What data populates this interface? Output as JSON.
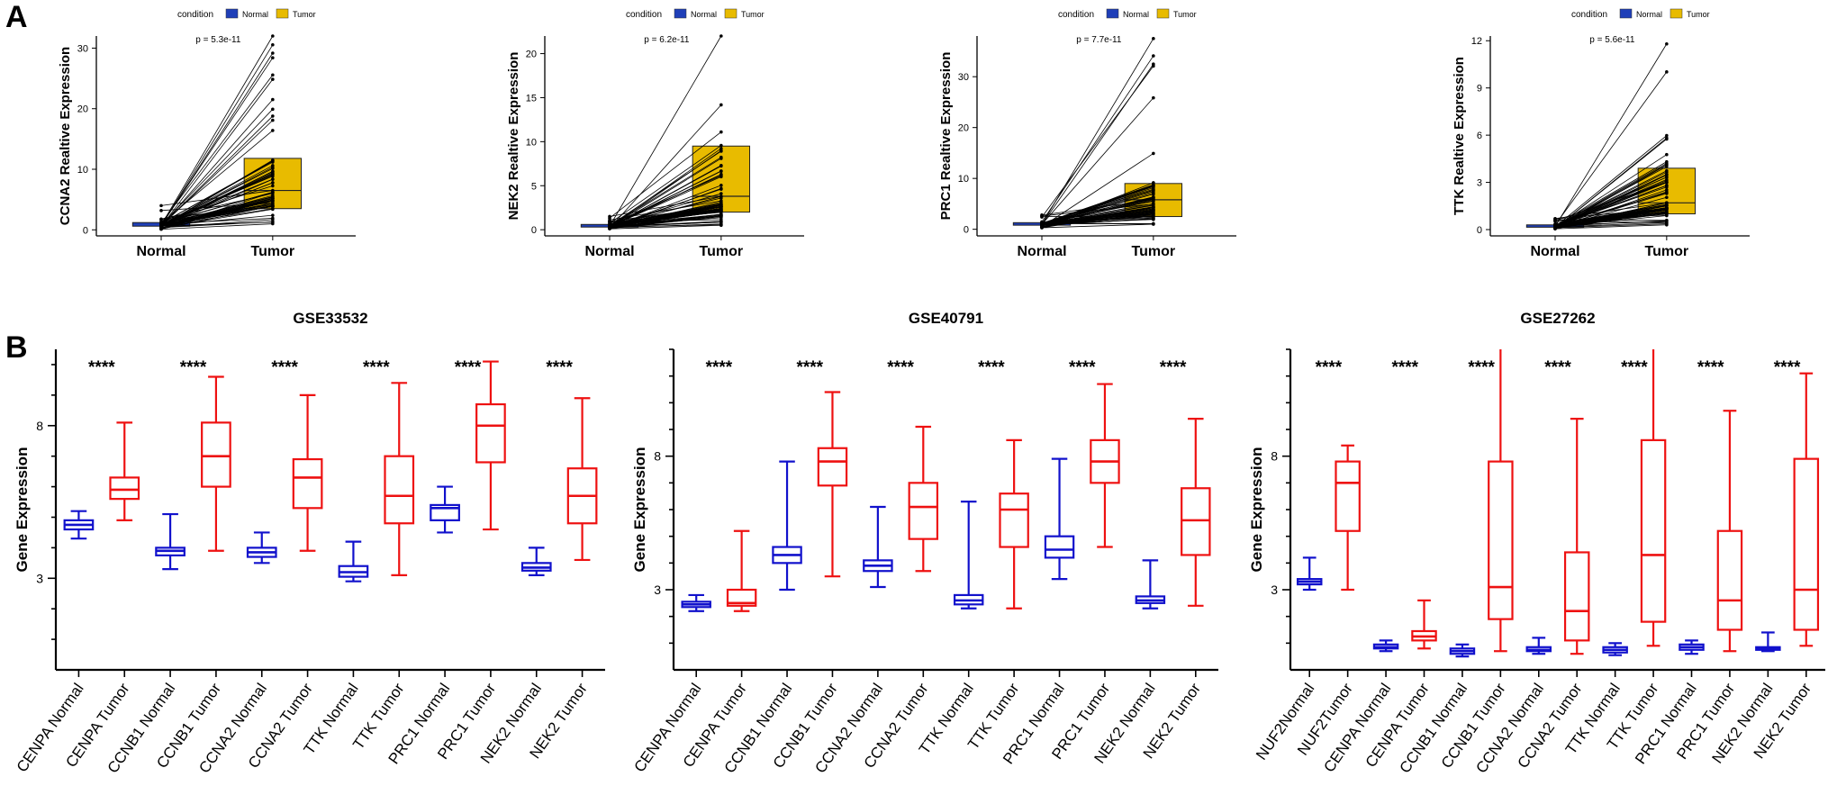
{
  "panels": {
    "a": "A",
    "b": "B"
  },
  "colors": {
    "normal": "#1f3fb8",
    "tumor": "#e8bb00",
    "blue_box": "#1111cc",
    "red_box": "#ee1111",
    "line": "#000000"
  },
  "chart_data": [
    {
      "type": "paired-boxplot",
      "panel": "A",
      "legend": {
        "title": "condition",
        "entries": [
          "Normal",
          "Tumor"
        ],
        "placement": "top"
      },
      "p_label": "p = 5.3e-11",
      "ylabel": "CCNA2 Realtive Expression",
      "categories": [
        "Normal",
        "Tumor"
      ],
      "yticks": [
        0,
        10,
        20,
        30
      ],
      "ylim": [
        -1,
        32
      ],
      "normal": {
        "min": 0.1,
        "q1": 0.6,
        "median": 0.8,
        "q3": 1.2,
        "max": 4.0
      },
      "tumor": {
        "min": 1.0,
        "q1": 3.5,
        "median": 6.5,
        "q3": 11.8,
        "max": 32.0
      }
    },
    {
      "type": "paired-boxplot",
      "panel": "A",
      "legend": {
        "title": "condition",
        "entries": [
          "Normal",
          "Tumor"
        ],
        "placement": "top"
      },
      "p_label": "p = 6.2e-11",
      "ylabel": "NEK2 Realtive Expression",
      "categories": [
        "Normal",
        "Tumor"
      ],
      "yticks": [
        0,
        5,
        10,
        15,
        20
      ],
      "ylim": [
        -0.7,
        22
      ],
      "normal": {
        "min": 0.1,
        "q1": 0.3,
        "median": 0.4,
        "q3": 0.6,
        "max": 1.5
      },
      "tumor": {
        "min": 0.5,
        "q1": 2.0,
        "median": 3.8,
        "q3": 9.5,
        "max": 22.0
      }
    },
    {
      "type": "paired-boxplot",
      "panel": "A",
      "legend": {
        "title": "condition",
        "entries": [
          "Normal",
          "Tumor"
        ],
        "placement": "top"
      },
      "p_label": "p = 7.7e-11",
      "ylabel": "PRC1 Realtive Expression",
      "categories": [
        "Normal",
        "Tumor"
      ],
      "yticks": [
        0,
        10,
        20,
        30
      ],
      "ylim": [
        -1.3,
        38
      ],
      "normal": {
        "min": 0.3,
        "q1": 0.8,
        "median": 1.0,
        "q3": 1.3,
        "max": 2.8
      },
      "tumor": {
        "min": 1.0,
        "q1": 2.5,
        "median": 5.8,
        "q3": 9.0,
        "max": 37.5
      }
    },
    {
      "type": "paired-boxplot",
      "panel": "A",
      "legend": {
        "title": "condition",
        "entries": [
          "Normal",
          "Tumor"
        ],
        "placement": "top"
      },
      "p_label": "p = 5.6e-11",
      "ylabel": "TTK Realtive Expression",
      "categories": [
        "Normal",
        "Tumor"
      ],
      "yticks": [
        0,
        3,
        6,
        9,
        12
      ],
      "ylim": [
        -0.4,
        12.3
      ],
      "normal": {
        "min": 0.05,
        "q1": 0.15,
        "median": 0.2,
        "q3": 0.3,
        "max": 0.7
      },
      "tumor": {
        "min": 0.3,
        "q1": 1.0,
        "median": 1.7,
        "q3": 3.9,
        "max": 11.8
      }
    },
    {
      "type": "boxplot",
      "panel": "B",
      "title": "GSE33532",
      "ylabel": "Gene Expression",
      "yticks": [
        3,
        8
      ],
      "ylim": [
        0,
        10.5
      ],
      "categories": [
        "CENPA Normal",
        "CENPA Tumor",
        "CCNB1 Normal",
        "CCNB1 Tumor",
        "CCNA2 Normal",
        "CCNA2 Tumor",
        "TTK   Normal",
        "TTK    Tumor",
        "PRC1   Normal",
        "PRC1   Tumor",
        "NEK2   Normal",
        "NEK2   Tumor"
      ],
      "significance": [
        "****",
        "****",
        "****",
        "****",
        "****",
        "****"
      ],
      "boxes": [
        {
          "min": 4.3,
          "q1": 4.6,
          "median": 4.75,
          "q3": 4.9,
          "max": 5.2
        },
        {
          "min": 4.9,
          "q1": 5.6,
          "median": 5.9,
          "q3": 6.3,
          "max": 8.1
        },
        {
          "min": 3.3,
          "q1": 3.75,
          "median": 3.9,
          "q3": 4.0,
          "max": 5.1
        },
        {
          "min": 3.9,
          "q1": 6.0,
          "median": 7.0,
          "q3": 8.1,
          "max": 9.6
        },
        {
          "min": 3.5,
          "q1": 3.7,
          "median": 3.85,
          "q3": 4.0,
          "max": 4.5
        },
        {
          "min": 3.9,
          "q1": 5.3,
          "median": 6.3,
          "q3": 6.9,
          "max": 9.0
        },
        {
          "min": 2.9,
          "q1": 3.05,
          "median": 3.2,
          "q3": 3.4,
          "max": 4.2
        },
        {
          "min": 3.1,
          "q1": 4.8,
          "median": 5.7,
          "q3": 7.0,
          "max": 9.4
        },
        {
          "min": 4.5,
          "q1": 4.9,
          "median": 5.3,
          "q3": 5.4,
          "max": 6.0
        },
        {
          "min": 4.6,
          "q1": 6.8,
          "median": 8.0,
          "q3": 8.7,
          "max": 10.1
        },
        {
          "min": 3.1,
          "q1": 3.25,
          "median": 3.35,
          "q3": 3.5,
          "max": 4.0
        },
        {
          "min": 3.6,
          "q1": 4.8,
          "median": 5.7,
          "q3": 6.6,
          "max": 8.9
        }
      ]
    },
    {
      "type": "boxplot",
      "panel": "B",
      "title": "GSE40791",
      "ylabel": "Gene Expression",
      "yticks": [
        3,
        8
      ],
      "ylim": [
        0,
        12
      ],
      "categories": [
        "CENPA Normal",
        "CENPA Tumor",
        "CCNB1 Normal",
        "CCNB1 Tumor",
        "CCNA2 Normal",
        "CCNA2 Tumor",
        "TTK Normal",
        "TTK Tumor",
        "PRC1 Normal",
        "PRC1 Tumor",
        "NEK2 Normal",
        "NEK2 Tumor"
      ],
      "significance": [
        "****",
        "****",
        "****",
        "****",
        "****",
        "****"
      ],
      "boxes": [
        {
          "min": 2.2,
          "q1": 2.35,
          "median": 2.45,
          "q3": 2.55,
          "max": 2.8
        },
        {
          "min": 2.2,
          "q1": 2.4,
          "median": 2.5,
          "q3": 3.0,
          "max": 5.2
        },
        {
          "min": 3.0,
          "q1": 4.0,
          "median": 4.3,
          "q3": 4.6,
          "max": 7.8
        },
        {
          "min": 3.5,
          "q1": 6.9,
          "median": 7.8,
          "q3": 8.3,
          "max": 10.4
        },
        {
          "min": 3.1,
          "q1": 3.7,
          "median": 3.9,
          "q3": 4.1,
          "max": 6.1
        },
        {
          "min": 3.7,
          "q1": 4.9,
          "median": 6.1,
          "q3": 7.0,
          "max": 9.1
        },
        {
          "min": 2.3,
          "q1": 2.45,
          "median": 2.6,
          "q3": 2.8,
          "max": 6.3
        },
        {
          "min": 2.3,
          "q1": 4.6,
          "median": 6.0,
          "q3": 6.6,
          "max": 8.6
        },
        {
          "min": 3.4,
          "q1": 4.2,
          "median": 4.5,
          "q3": 5.0,
          "max": 7.9
        },
        {
          "min": 4.6,
          "q1": 7.0,
          "median": 7.8,
          "q3": 8.6,
          "max": 10.7
        },
        {
          "min": 2.3,
          "q1": 2.5,
          "median": 2.6,
          "q3": 2.75,
          "max": 4.1
        },
        {
          "min": 2.4,
          "q1": 4.3,
          "median": 5.6,
          "q3": 6.8,
          "max": 9.4
        }
      ]
    },
    {
      "type": "boxplot",
      "panel": "B",
      "title": "GSE27262",
      "ylabel": "Gene Expression",
      "yticks": [
        3,
        8
      ],
      "ylim": [
        0,
        12
      ],
      "categories": [
        "NUF2Normal",
        "NUF2Tumor",
        "CENPA Normal",
        "CENPA Tumor",
        "CCNB1 Normal",
        "CCNB1 Tumor",
        "CCNA2 Normal",
        "CCNA2 Tumor",
        "TTK Normal",
        "TTK Tumor",
        "PRC1 Normal",
        "PRC1 Tumor",
        "NEK2 Normal",
        "NEK2 Tumor"
      ],
      "significance": [
        "****",
        "****",
        "****",
        "****",
        "****",
        "****",
        "****"
      ],
      "boxes": [
        {
          "min": 3.0,
          "q1": 3.2,
          "median": 3.3,
          "q3": 3.4,
          "max": 4.2
        },
        {
          "min": 3.0,
          "q1": 5.2,
          "median": 7.0,
          "q3": 7.8,
          "max": 8.4
        },
        {
          "min": 0.7,
          "q1": 0.8,
          "median": 0.85,
          "q3": 0.95,
          "max": 1.1
        },
        {
          "min": 0.8,
          "q1": 1.1,
          "median": 1.25,
          "q3": 1.45,
          "max": 2.6
        },
        {
          "min": 0.5,
          "q1": 0.6,
          "median": 0.7,
          "q3": 0.8,
          "max": 0.95
        },
        {
          "min": 0.7,
          "q1": 1.9,
          "median": 3.1,
          "q3": 7.8,
          "max": 12.5
        },
        {
          "min": 0.6,
          "q1": 0.7,
          "median": 0.75,
          "q3": 0.85,
          "max": 1.2
        },
        {
          "min": 0.6,
          "q1": 1.1,
          "median": 2.2,
          "q3": 4.4,
          "max": 9.4
        },
        {
          "min": 0.55,
          "q1": 0.65,
          "median": 0.75,
          "q3": 0.85,
          "max": 1.0
        },
        {
          "min": 0.9,
          "q1": 1.8,
          "median": 4.3,
          "q3": 8.6,
          "max": 12.5
        },
        {
          "min": 0.6,
          "q1": 0.75,
          "median": 0.85,
          "q3": 0.95,
          "max": 1.1
        },
        {
          "min": 0.7,
          "q1": 1.5,
          "median": 2.6,
          "q3": 5.2,
          "max": 9.7
        },
        {
          "min": 0.7,
          "q1": 0.75,
          "median": 0.8,
          "q3": 0.85,
          "max": 1.4
        },
        {
          "min": 0.9,
          "q1": 1.5,
          "median": 3.0,
          "q3": 7.9,
          "max": 11.1
        }
      ]
    }
  ]
}
